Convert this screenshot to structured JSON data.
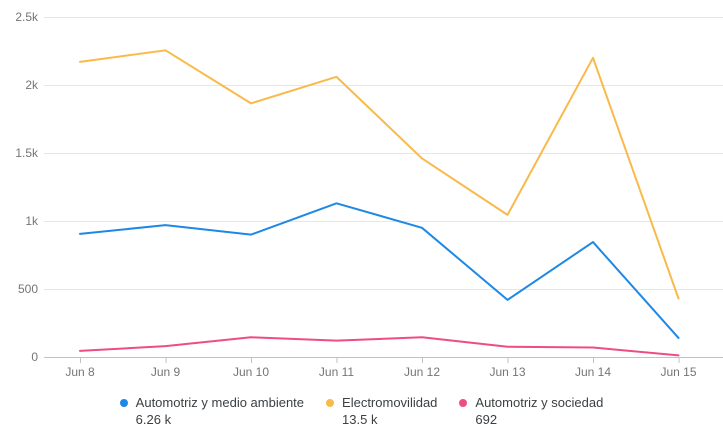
{
  "chart_data": {
    "type": "line",
    "title": "",
    "xlabel": "",
    "ylabel": "",
    "x_labels": [
      "Jun 8",
      "Jun 9",
      "Jun 10",
      "Jun 11",
      "Jun 12",
      "Jun 13",
      "Jun 14",
      "Jun 15"
    ],
    "y_tick_labels": [
      "0",
      "500",
      "1k",
      "1.5k",
      "2k",
      "2.5k"
    ],
    "y_tick_step": 500,
    "ylim": [
      0,
      2500
    ],
    "grid": true,
    "legend_position": "bottom",
    "colors": {
      "axis_label": "#757575",
      "grid_line": "#e7e7e7",
      "axis_line": "#c2c2c2",
      "legend_text": "#3c4043"
    },
    "series": [
      {
        "id": "automotriz-y-medio-ambiente",
        "name": "Automotriz y medio ambiente",
        "total": "6.26 k",
        "color": "#1e88e5",
        "values": [
          905,
          970,
          900,
          1130,
          950,
          420,
          845,
          140
        ]
      },
      {
        "id": "electromovilidad",
        "name": "Electromovilidad",
        "total": "13.5 k",
        "color": "#f8ba4b",
        "values": [
          2170,
          2255,
          1865,
          2060,
          1460,
          1045,
          2200,
          430
        ]
      },
      {
        "id": "automotriz-y-sociedad",
        "name": "Automotriz y sociedad",
        "total": "692",
        "color": "#ee4d82",
        "values": [
          45,
          80,
          145,
          120,
          145,
          75,
          70,
          12
        ]
      }
    ]
  }
}
